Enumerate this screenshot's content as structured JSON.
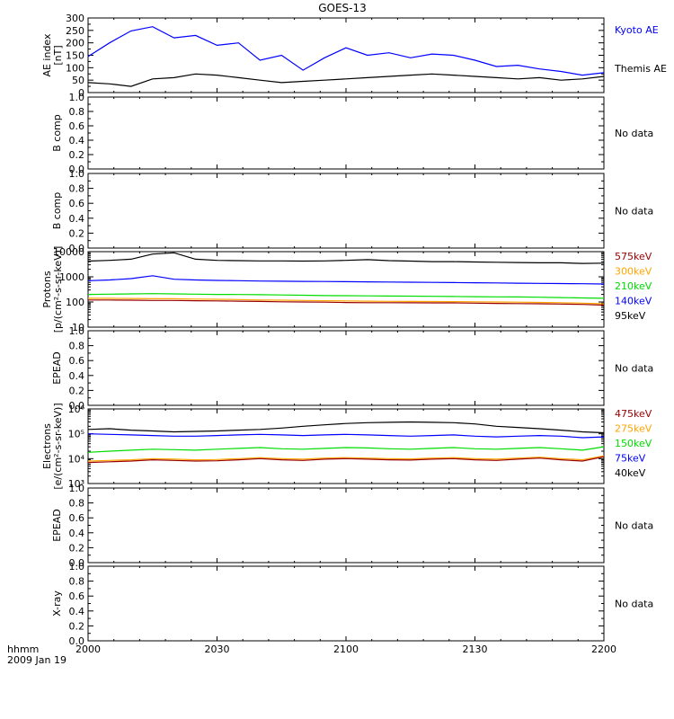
{
  "title": "GOES-13",
  "time_axis": {
    "ticks": [
      "2000",
      "2030",
      "2100",
      "2130",
      "2200"
    ],
    "unit_label": "hhmm",
    "date_label": "2009 Jan 19"
  },
  "chart_data": [
    {
      "type": "line",
      "ylabel": [
        "AE index",
        "[nT]"
      ],
      "ylim": [
        0,
        300
      ],
      "yticks": [
        "0",
        "50",
        "100",
        "150",
        "200",
        "250",
        "300"
      ],
      "x": [
        0,
        5,
        10,
        15,
        20,
        25,
        30,
        35,
        40,
        45,
        50,
        55,
        60,
        65,
        70,
        75,
        80,
        85,
        90,
        95,
        100,
        105,
        110,
        115,
        120
      ],
      "series": [
        {
          "name": "Kyoto AE",
          "color": "#0000ff",
          "values": [
            145,
            200,
            248,
            265,
            220,
            230,
            190,
            200,
            130,
            150,
            90,
            140,
            180,
            150,
            160,
            140,
            155,
            150,
            130,
            105,
            110,
            95,
            85,
            70,
            80
          ]
        },
        {
          "name": "Themis AE",
          "color": "#000000",
          "values": [
            40,
            35,
            25,
            55,
            60,
            75,
            70,
            60,
            50,
            40,
            45,
            50,
            55,
            60,
            65,
            70,
            75,
            70,
            65,
            60,
            55,
            60,
            50,
            55,
            65
          ]
        }
      ]
    },
    {
      "type": "line",
      "ylabel": [
        "B comp"
      ],
      "ylim": [
        0,
        1
      ],
      "yticks": [
        "0.0",
        "0.2",
        "0.4",
        "0.6",
        "0.8",
        "1.0"
      ],
      "note": "No data"
    },
    {
      "type": "line",
      "ylabel": [
        "B comp"
      ],
      "ylim": [
        0,
        1
      ],
      "yticks": [
        "0.0",
        "0.2",
        "0.4",
        "0.6",
        "0.8",
        "1.0"
      ],
      "note": "No data"
    },
    {
      "type": "line",
      "scale": "log",
      "ylabel": [
        "Protons",
        "[p/(cm²-s-sr-keV)]"
      ],
      "ylim": [
        10,
        10000
      ],
      "yticks": [
        "10",
        "100",
        "1000",
        "10000"
      ],
      "x": [
        0,
        5,
        10,
        15,
        20,
        25,
        30,
        35,
        40,
        45,
        50,
        55,
        60,
        65,
        70,
        75,
        80,
        85,
        90,
        95,
        100,
        105,
        110,
        115,
        120
      ],
      "series": [
        {
          "name": "575keV",
          "color": "#990000",
          "values": [
            120,
            120,
            118,
            115,
            115,
            112,
            110,
            108,
            105,
            102,
            100,
            98,
            95,
            94,
            94,
            93,
            92,
            92,
            90,
            88,
            86,
            85,
            83,
            80,
            75
          ]
        },
        {
          "name": "300keV",
          "color": "#ffa500",
          "values": [
            140,
            140,
            138,
            135,
            135,
            130,
            128,
            125,
            120,
            118,
            115,
            112,
            110,
            108,
            106,
            105,
            104,
            103,
            102,
            100,
            98,
            96,
            94,
            90,
            85
          ]
        },
        {
          "name": "210keV",
          "color": "#00dd00",
          "values": [
            200,
            205,
            210,
            215,
            210,
            205,
            200,
            198,
            195,
            190,
            185,
            180,
            178,
            175,
            172,
            170,
            168,
            165,
            162,
            160,
            158,
            155,
            150,
            145,
            140
          ]
        },
        {
          "name": "140keV",
          "color": "#0000ff",
          "values": [
            700,
            750,
            850,
            1100,
            800,
            750,
            720,
            700,
            680,
            670,
            660,
            650,
            640,
            630,
            620,
            610,
            600,
            590,
            580,
            570,
            560,
            550,
            540,
            530,
            520
          ]
        },
        {
          "name": "95keV",
          "color": "#000000",
          "values": [
            4200,
            4500,
            5000,
            8000,
            9000,
            5000,
            4500,
            4400,
            4300,
            4300,
            4200,
            4300,
            4500,
            4800,
            4400,
            4200,
            4000,
            4000,
            3900,
            3800,
            3700,
            3600,
            3600,
            3400,
            3500
          ]
        }
      ]
    },
    {
      "type": "line",
      "ylabel": [
        "EPEAD"
      ],
      "ylim": [
        0,
        1
      ],
      "yticks": [
        "0.0",
        "0.2",
        "0.4",
        "0.6",
        "0.8",
        "1.0"
      ],
      "note": "No data"
    },
    {
      "type": "line",
      "scale": "log",
      "ylabel": [
        "Electrons",
        "[e/(cm²-s-sr-keV)]"
      ],
      "ylim": [
        1000,
        1000000
      ],
      "yticks": [
        "10³",
        "10⁴",
        "10⁵",
        "10⁶"
      ],
      "x": [
        0,
        5,
        10,
        15,
        20,
        25,
        30,
        35,
        40,
        45,
        50,
        55,
        60,
        65,
        70,
        75,
        80,
        85,
        90,
        95,
        100,
        105,
        110,
        115,
        120
      ],
      "series": [
        {
          "name": "475keV",
          "color": "#990000",
          "values": [
            7000,
            7500,
            8000,
            9000,
            8500,
            8000,
            8200,
            9000,
            10000,
            9000,
            8500,
            9500,
            10000,
            9500,
            9000,
            8800,
            9500,
            10000,
            9000,
            8500,
            9500,
            10500,
            9000,
            8000,
            12000
          ]
        },
        {
          "name": "275keV",
          "color": "#ffa500",
          "values": [
            8000,
            8500,
            9000,
            10000,
            9500,
            9000,
            9200,
            10000,
            11000,
            10000,
            9500,
            10500,
            11000,
            10500,
            10000,
            9800,
            10500,
            11000,
            10000,
            9500,
            10500,
            11500,
            10000,
            9000,
            13000
          ]
        },
        {
          "name": "150keV",
          "color": "#00dd00",
          "values": [
            18000,
            20000,
            22000,
            24000,
            23000,
            22000,
            24000,
            26000,
            28000,
            25000,
            24000,
            26000,
            28000,
            27000,
            25000,
            24000,
            26000,
            28000,
            25000,
            24000,
            26000,
            28000,
            25000,
            22000,
            30000
          ]
        },
        {
          "name": "75keV",
          "color": "#0000ff",
          "values": [
            100000,
            95000,
            90000,
            85000,
            80000,
            80000,
            85000,
            90000,
            95000,
            90000,
            85000,
            90000,
            95000,
            90000,
            85000,
            80000,
            85000,
            90000,
            80000,
            75000,
            80000,
            85000,
            80000,
            70000,
            75000
          ]
        },
        {
          "name": "40keV",
          "color": "#000000",
          "values": [
            150000,
            160000,
            140000,
            130000,
            120000,
            125000,
            130000,
            140000,
            150000,
            170000,
            200000,
            230000,
            260000,
            280000,
            290000,
            300000,
            290000,
            280000,
            250000,
            200000,
            180000,
            160000,
            140000,
            120000,
            110000
          ]
        }
      ]
    },
    {
      "type": "line",
      "ylabel": [
        "EPEAD"
      ],
      "ylim": [
        0,
        1
      ],
      "yticks": [
        "0.0",
        "0.2",
        "0.4",
        "0.6",
        "0.8",
        "1.0"
      ],
      "note": "No data"
    },
    {
      "type": "line",
      "ylabel": [
        "X-ray"
      ],
      "ylim": [
        0,
        1
      ],
      "yticks": [
        "0.0",
        "0.2",
        "0.4",
        "0.6",
        "0.8",
        "1.0"
      ],
      "note": "No data"
    }
  ]
}
